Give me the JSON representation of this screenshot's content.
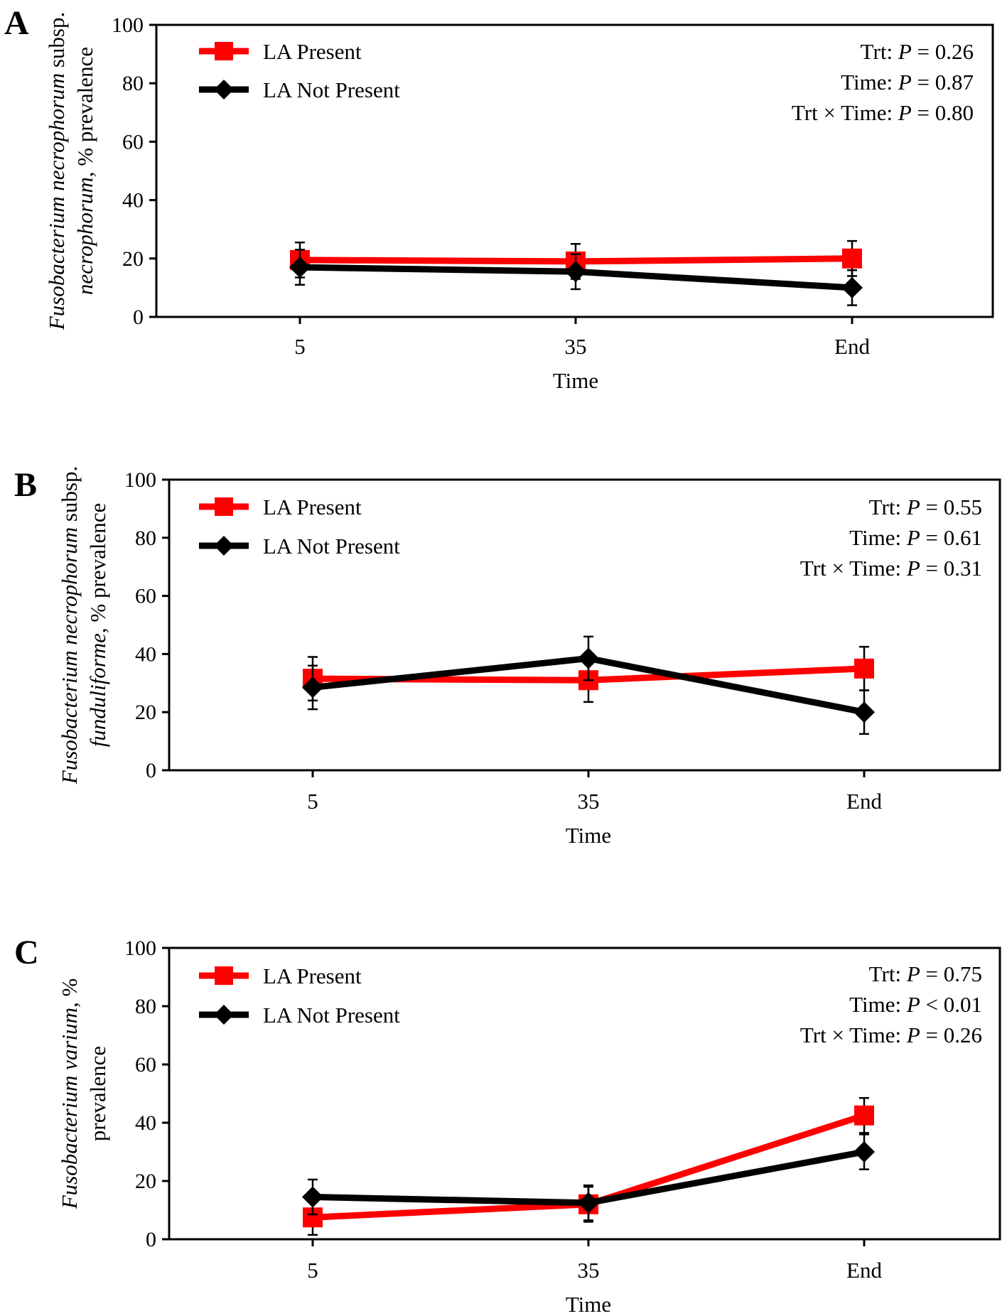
{
  "figure": {
    "x_axis_label": "Time",
    "legend_labels": [
      "LA Present",
      "LA Not Present"
    ],
    "series_colors": [
      "#ff0000",
      "#000000"
    ]
  },
  "chart_data": [
    {
      "panel_label": "A",
      "type": "line",
      "categories": [
        "5",
        "35",
        "End"
      ],
      "xlabel": "Time",
      "ylabel_lines": [
        [
          {
            "text": "Fusobacterium necrophorum",
            "italic": true
          },
          {
            "text": " subsp.",
            "italic": false
          }
        ],
        [
          {
            "text": "necrophorum",
            "italic": true
          },
          {
            "text": ", % prevalence",
            "italic": false
          }
        ]
      ],
      "ylim": [
        0,
        100
      ],
      "yticks": [
        0,
        20,
        40,
        60,
        80,
        100
      ],
      "series": [
        {
          "name": "LA Present",
          "color": "#ff0000",
          "marker": "square",
          "values": [
            19.5,
            19,
            20
          ],
          "errors": [
            6,
            6,
            6
          ]
        },
        {
          "name": "LA Not Present",
          "color": "#000000",
          "marker": "diamond",
          "values": [
            17,
            15.5,
            10
          ],
          "errors": [
            6,
            6,
            6
          ]
        }
      ],
      "stats": [
        {
          "label": "Trt: ",
          "symbol": "P",
          "value": " = 0.26"
        },
        {
          "label": "Time: ",
          "symbol": "P",
          "value": " = 0.87"
        },
        {
          "label": "Trt × Time:  ",
          "symbol": "P",
          "value": " = 0.80"
        }
      ]
    },
    {
      "panel_label": "B",
      "type": "line",
      "categories": [
        "5",
        "35",
        "End"
      ],
      "xlabel": "Time",
      "ylabel_lines": [
        [
          {
            "text": "Fusobacterium necrophorum",
            "italic": true
          },
          {
            "text": " subsp.",
            "italic": false
          }
        ],
        [
          {
            "text": "funduliforme",
            "italic": true
          },
          {
            "text": ", % prevalence",
            "italic": false
          }
        ]
      ],
      "ylim": [
        0,
        100
      ],
      "yticks": [
        0,
        20,
        40,
        60,
        80,
        100
      ],
      "series": [
        {
          "name": "LA Present",
          "color": "#ff0000",
          "marker": "square",
          "values": [
            31.5,
            31,
            35
          ],
          "errors": [
            7.5,
            7.5,
            7.5
          ]
        },
        {
          "name": "LA Not Present",
          "color": "#000000",
          "marker": "diamond",
          "values": [
            28.5,
            38.5,
            20
          ],
          "errors": [
            7.5,
            7.5,
            7.5
          ]
        }
      ],
      "stats": [
        {
          "label": "Trt: ",
          "symbol": "P",
          "value": " = 0.55"
        },
        {
          "label": "Time: ",
          "symbol": "P",
          "value": " = 0.61"
        },
        {
          "label": "Trt × Time:  ",
          "symbol": "P",
          "value": " = 0.31"
        }
      ]
    },
    {
      "panel_label": "C",
      "type": "line",
      "categories": [
        "5",
        "35",
        "End"
      ],
      "xlabel": "Time",
      "ylabel_lines": [
        [
          {
            "text": "Fusobacterium varium",
            "italic": true
          },
          {
            "text": ", %",
            "italic": false
          }
        ],
        [
          {
            "text": "prevalence",
            "italic": false
          }
        ]
      ],
      "ylim": [
        0,
        100
      ],
      "yticks": [
        0,
        20,
        40,
        60,
        80,
        100
      ],
      "series": [
        {
          "name": "LA Present",
          "color": "#ff0000",
          "marker": "square",
          "values": [
            7.5,
            12,
            42.5
          ],
          "errors": [
            6,
            6,
            6
          ]
        },
        {
          "name": "LA Not Present",
          "color": "#000000",
          "marker": "diamond",
          "values": [
            14.5,
            12.5,
            30
          ],
          "errors": [
            6,
            6,
            6
          ]
        }
      ],
      "stats": [
        {
          "label": "Trt: ",
          "symbol": "P",
          "value": " = 0.75"
        },
        {
          "label": "Time: ",
          "symbol": "P",
          "value": " < 0.01"
        },
        {
          "label": "Trt × Time:  ",
          "symbol": "P",
          "value": " = 0.26"
        }
      ]
    }
  ]
}
